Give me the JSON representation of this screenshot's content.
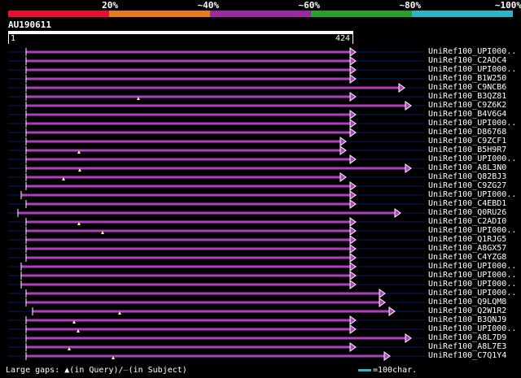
{
  "legend": {
    "labels": [
      "20%",
      "~40%",
      "~60%",
      "~80%",
      "~100%"
    ],
    "colors": [
      "#e8102e",
      "#e87a1e",
      "#9b2aa0",
      "#2aa02a",
      "#2ab7c5"
    ]
  },
  "query": {
    "name": "AU190611",
    "start_label": "1",
    "end_label": "424",
    "length": 424
  },
  "hit_color": "#b040c0",
  "hits": [
    {
      "name": "UniRef100_UPI000..",
      "start": 32,
      "end": 437,
      "gaps": []
    },
    {
      "name": "UniRef100_C2ADC4",
      "start": 32,
      "end": 437,
      "gaps": []
    },
    {
      "name": "UniRef100_UPI000..",
      "start": 32,
      "end": 437,
      "gaps": []
    },
    {
      "name": "UniRef100_B1W250",
      "start": 32,
      "end": 437,
      "gaps": []
    },
    {
      "name": "UniRef100_C9NCB6",
      "start": 32,
      "end": 497,
      "gaps": []
    },
    {
      "name": "UniRef100_B3QZ81",
      "start": 32,
      "end": 437,
      "gaps": [
        170
      ]
    },
    {
      "name": "UniRef100_C9Z6K2",
      "start": 32,
      "end": 505,
      "gaps": []
    },
    {
      "name": "UniRef100_B4V6G4",
      "start": 32,
      "end": 437,
      "gaps": []
    },
    {
      "name": "UniRef100_UPI000..",
      "start": 32,
      "end": 437,
      "gaps": []
    },
    {
      "name": "UniRef100_D86768",
      "start": 32,
      "end": 437,
      "gaps": []
    },
    {
      "name": "UniRef100_C9ZCF1",
      "start": 32,
      "end": 425,
      "gaps": []
    },
    {
      "name": "UniRef100_B5H9R7",
      "start": 32,
      "end": 425,
      "gaps": [
        97
      ]
    },
    {
      "name": "UniRef100_UPI000..",
      "start": 32,
      "end": 437,
      "gaps": []
    },
    {
      "name": "UniRef100_A8L3N0",
      "start": 32,
      "end": 505,
      "gaps": [
        98
      ]
    },
    {
      "name": "UniRef100_Q82BJ3",
      "start": 32,
      "end": 425,
      "gaps": [
        78
      ]
    },
    {
      "name": "UniRef100_C9ZG27",
      "start": 32,
      "end": 437,
      "gaps": []
    },
    {
      "name": "UniRef100_UPI000..",
      "start": 26,
      "end": 437,
      "gaps": []
    },
    {
      "name": "UniRef100_C4EBD1",
      "start": 32,
      "end": 437,
      "gaps": []
    },
    {
      "name": "UniRef100_Q0RU26",
      "start": 22,
      "end": 492,
      "gaps": []
    },
    {
      "name": "UniRef100_C2ADI0",
      "start": 32,
      "end": 437,
      "gaps": [
        97
      ]
    },
    {
      "name": "UniRef100_UPI000..",
      "start": 32,
      "end": 437,
      "gaps": [
        126
      ]
    },
    {
      "name": "UniRef100_Q1RJG5",
      "start": 32,
      "end": 437,
      "gaps": []
    },
    {
      "name": "UniRef100_A8GX57",
      "start": 32,
      "end": 437,
      "gaps": []
    },
    {
      "name": "UniRef100_C4YZG8",
      "start": 32,
      "end": 437,
      "gaps": []
    },
    {
      "name": "UniRef100_UPI000..",
      "start": 26,
      "end": 437,
      "gaps": []
    },
    {
      "name": "UniRef100_UPI000..",
      "start": 26,
      "end": 437,
      "gaps": []
    },
    {
      "name": "UniRef100_UPI000..",
      "start": 26,
      "end": 437,
      "gaps": []
    },
    {
      "name": "UniRef100_UPI000..",
      "start": 32,
      "end": 473,
      "gaps": []
    },
    {
      "name": "UniRef100_Q9LQM8",
      "start": 32,
      "end": 473,
      "gaps": []
    },
    {
      "name": "UniRef100_Q2W1R2",
      "start": 40,
      "end": 485,
      "gaps": [
        147
      ]
    },
    {
      "name": "UniRef100_B3QNJ9",
      "start": 32,
      "end": 437,
      "gaps": [
        91
      ]
    },
    {
      "name": "UniRef100_UPI000..",
      "start": 32,
      "end": 437,
      "gaps": [
        96
      ]
    },
    {
      "name": "UniRef100_A8L7D9",
      "start": 32,
      "end": 505,
      "gaps": []
    },
    {
      "name": "UniRef100_A8L7E3",
      "start": 32,
      "end": 437,
      "gaps": [
        85
      ]
    },
    {
      "name": "UniRef100_C7Q1Y4",
      "start": 32,
      "end": 479,
      "gaps": [
        139
      ]
    }
  ],
  "footer": {
    "gaps_label": "Large gaps:",
    "query_gap": "(in Query)/",
    "subject_gap": "(in Subject)",
    "scale_label": "=100char."
  }
}
